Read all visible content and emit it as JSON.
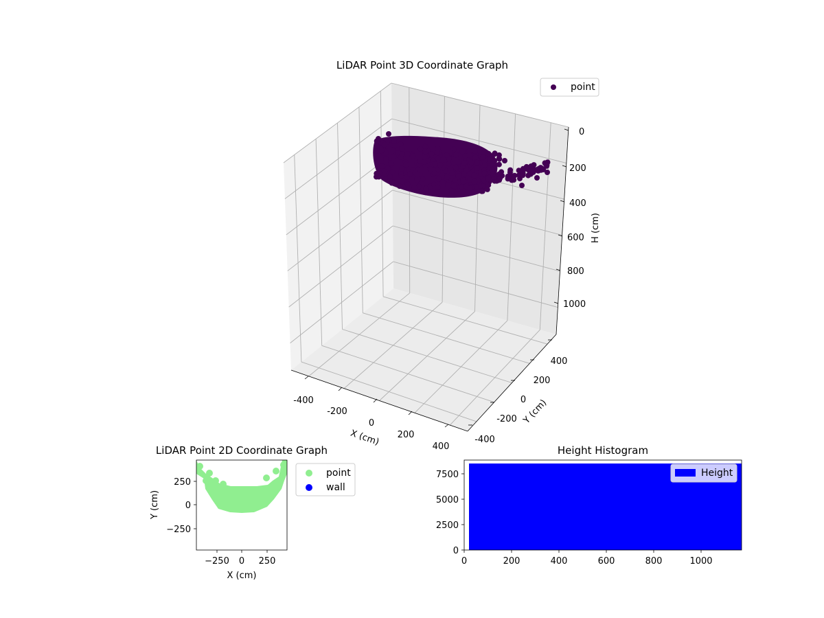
{
  "chart_data": [
    {
      "type": "scatter",
      "projection": "3d",
      "title": "LiDAR Point 3D Coordinate Graph",
      "xlabel": "X (cm)",
      "ylabel": "Y (cm)",
      "zlabel": "H (cm)",
      "xlim": [
        -500,
        500
      ],
      "ylim": [
        -500,
        500
      ],
      "zlim": [
        1150,
        0
      ],
      "z_axis_inverted": true,
      "x_ticks": [
        "-400",
        "-200",
        "0",
        "200",
        "400"
      ],
      "y_ticks": [
        "-400",
        "-200",
        "0",
        "200",
        "400"
      ],
      "z_ticks": [
        "0",
        "200",
        "400",
        "600",
        "800",
        "1000"
      ],
      "grid": true,
      "legend": {
        "placement": "upper-right",
        "entries": [
          "point"
        ]
      },
      "series": [
        {
          "name": "point",
          "color": "#440154",
          "marker": "circle",
          "description_points": [
            {
              "x": -450,
              "y": 400,
              "h": 100
            },
            {
              "x": -450,
              "y": 250,
              "h": 180
            },
            {
              "x": -350,
              "y": 100,
              "h": 250
            },
            {
              "x": -200,
              "y": -50,
              "h": 300
            },
            {
              "x": 0,
              "y": -100,
              "h": 320
            },
            {
              "x": 150,
              "y": -150,
              "h": 310
            },
            {
              "x": 300,
              "y": -250,
              "h": 280
            },
            {
              "x": 450,
              "y": -400,
              "h": 230
            }
          ]
        }
      ]
    },
    {
      "type": "scatter",
      "title": "LiDAR Point 2D Coordinate Graph",
      "xlabel": "X (cm)",
      "ylabel": "Y (cm)",
      "xlim": [
        -450,
        450
      ],
      "ylim": [
        -450,
        450
      ],
      "x_ticks": [
        "−250",
        "0",
        "250"
      ],
      "y_ticks": [
        "250",
        "0",
        "−250"
      ],
      "legend": {
        "placement": "outside-right",
        "entries": [
          "point",
          "wall"
        ]
      },
      "series": [
        {
          "name": "point",
          "color": "#90ee90",
          "region": "bowl",
          "center_y_min": -120,
          "edge_y_max": 420
        },
        {
          "name": "wall",
          "color": "#0000ff",
          "count": 0
        }
      ]
    },
    {
      "type": "bar",
      "title": "Height Histogram",
      "xlim": [
        0,
        1175
      ],
      "ylim": [
        0,
        8900
      ],
      "x_ticks": [
        "0",
        "200",
        "400",
        "600",
        "800",
        "1000"
      ],
      "y_ticks": [
        "0",
        "2500",
        "5000",
        "7500"
      ],
      "legend": {
        "placement": "upper-right",
        "entries": [
          "Height"
        ]
      },
      "series": [
        {
          "name": "Height",
          "color": "#0000ff",
          "x_start": 20,
          "x_end": 1175,
          "value": 8500
        }
      ]
    }
  ]
}
